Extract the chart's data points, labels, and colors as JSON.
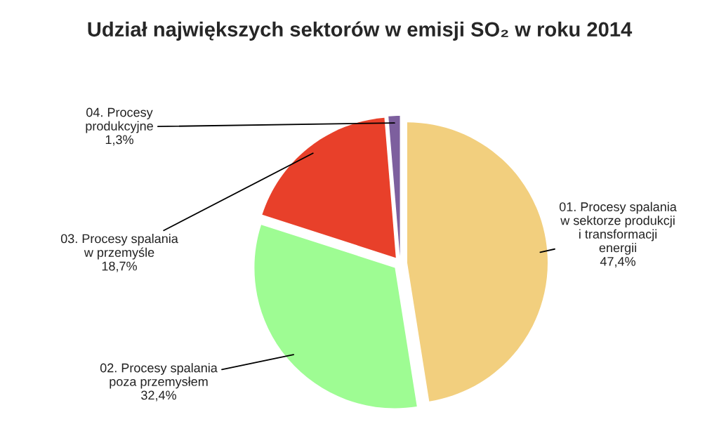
{
  "chart_data": {
    "type": "pie",
    "title": "Udział największych sektorów w emisji SO₂ w roku 2014",
    "categories": [
      "01. Procesy spalania\nw sektorze produkcji\ni transformacji\nenergii",
      "02. Procesy spalania\npoza przemysłem",
      "03. Procesy spalania\nw przemyśle",
      "04. Procesy\nprodukcyjne"
    ],
    "values": [
      47.4,
      32.4,
      18.7,
      1.3
    ],
    "value_labels": [
      "47,4%",
      "32,4%",
      "18,7%",
      "1,3%"
    ],
    "colors": [
      "#f2cf7e",
      "#9efc93",
      "#e8402a",
      "#7d5f9e"
    ],
    "legend": false
  }
}
